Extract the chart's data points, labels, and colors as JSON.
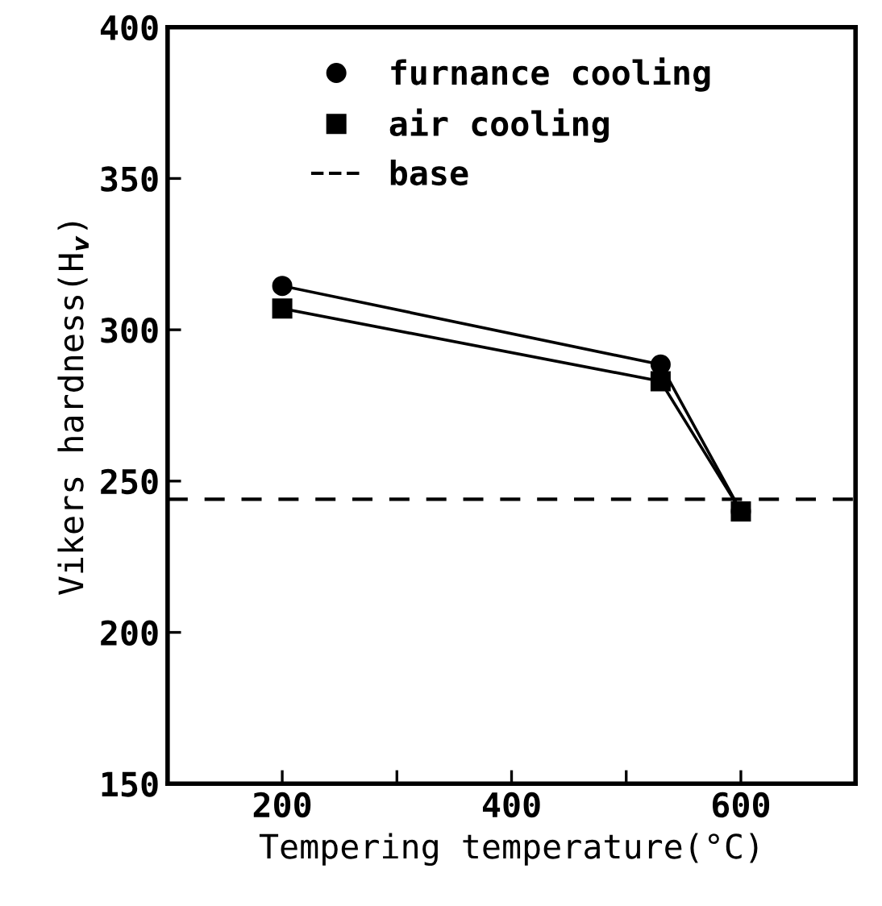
{
  "chart_data": {
    "type": "line",
    "xlabel": "Tempering temperature(°C)",
    "ylabel": "Vikers hardness(H$_{v}$)",
    "x": [
      200,
      530,
      600
    ],
    "series": [
      {
        "name": "furnance cooling",
        "color": "#000000",
        "marker": "circle",
        "values": [
          314.5,
          288.5,
          240
        ]
      },
      {
        "name": "air cooling",
        "color": "#000000",
        "marker": "square",
        "values": [
          307,
          283,
          240
        ]
      }
    ],
    "ref_lines": [
      {
        "axis": "y",
        "value": 244,
        "label": "base",
        "line_style": "dashed",
        "color": "#000000"
      }
    ],
    "xlim": [
      100,
      700
    ],
    "ylim": [
      150,
      400
    ],
    "xticks": [
      200,
      {
        "value": 300,
        "label": null
      },
      400,
      {
        "value": 500,
        "label": null
      },
      600
    ],
    "yticks": [
      150,
      200,
      250,
      300,
      350,
      400
    ],
    "grid": false,
    "legend": "top"
  }
}
